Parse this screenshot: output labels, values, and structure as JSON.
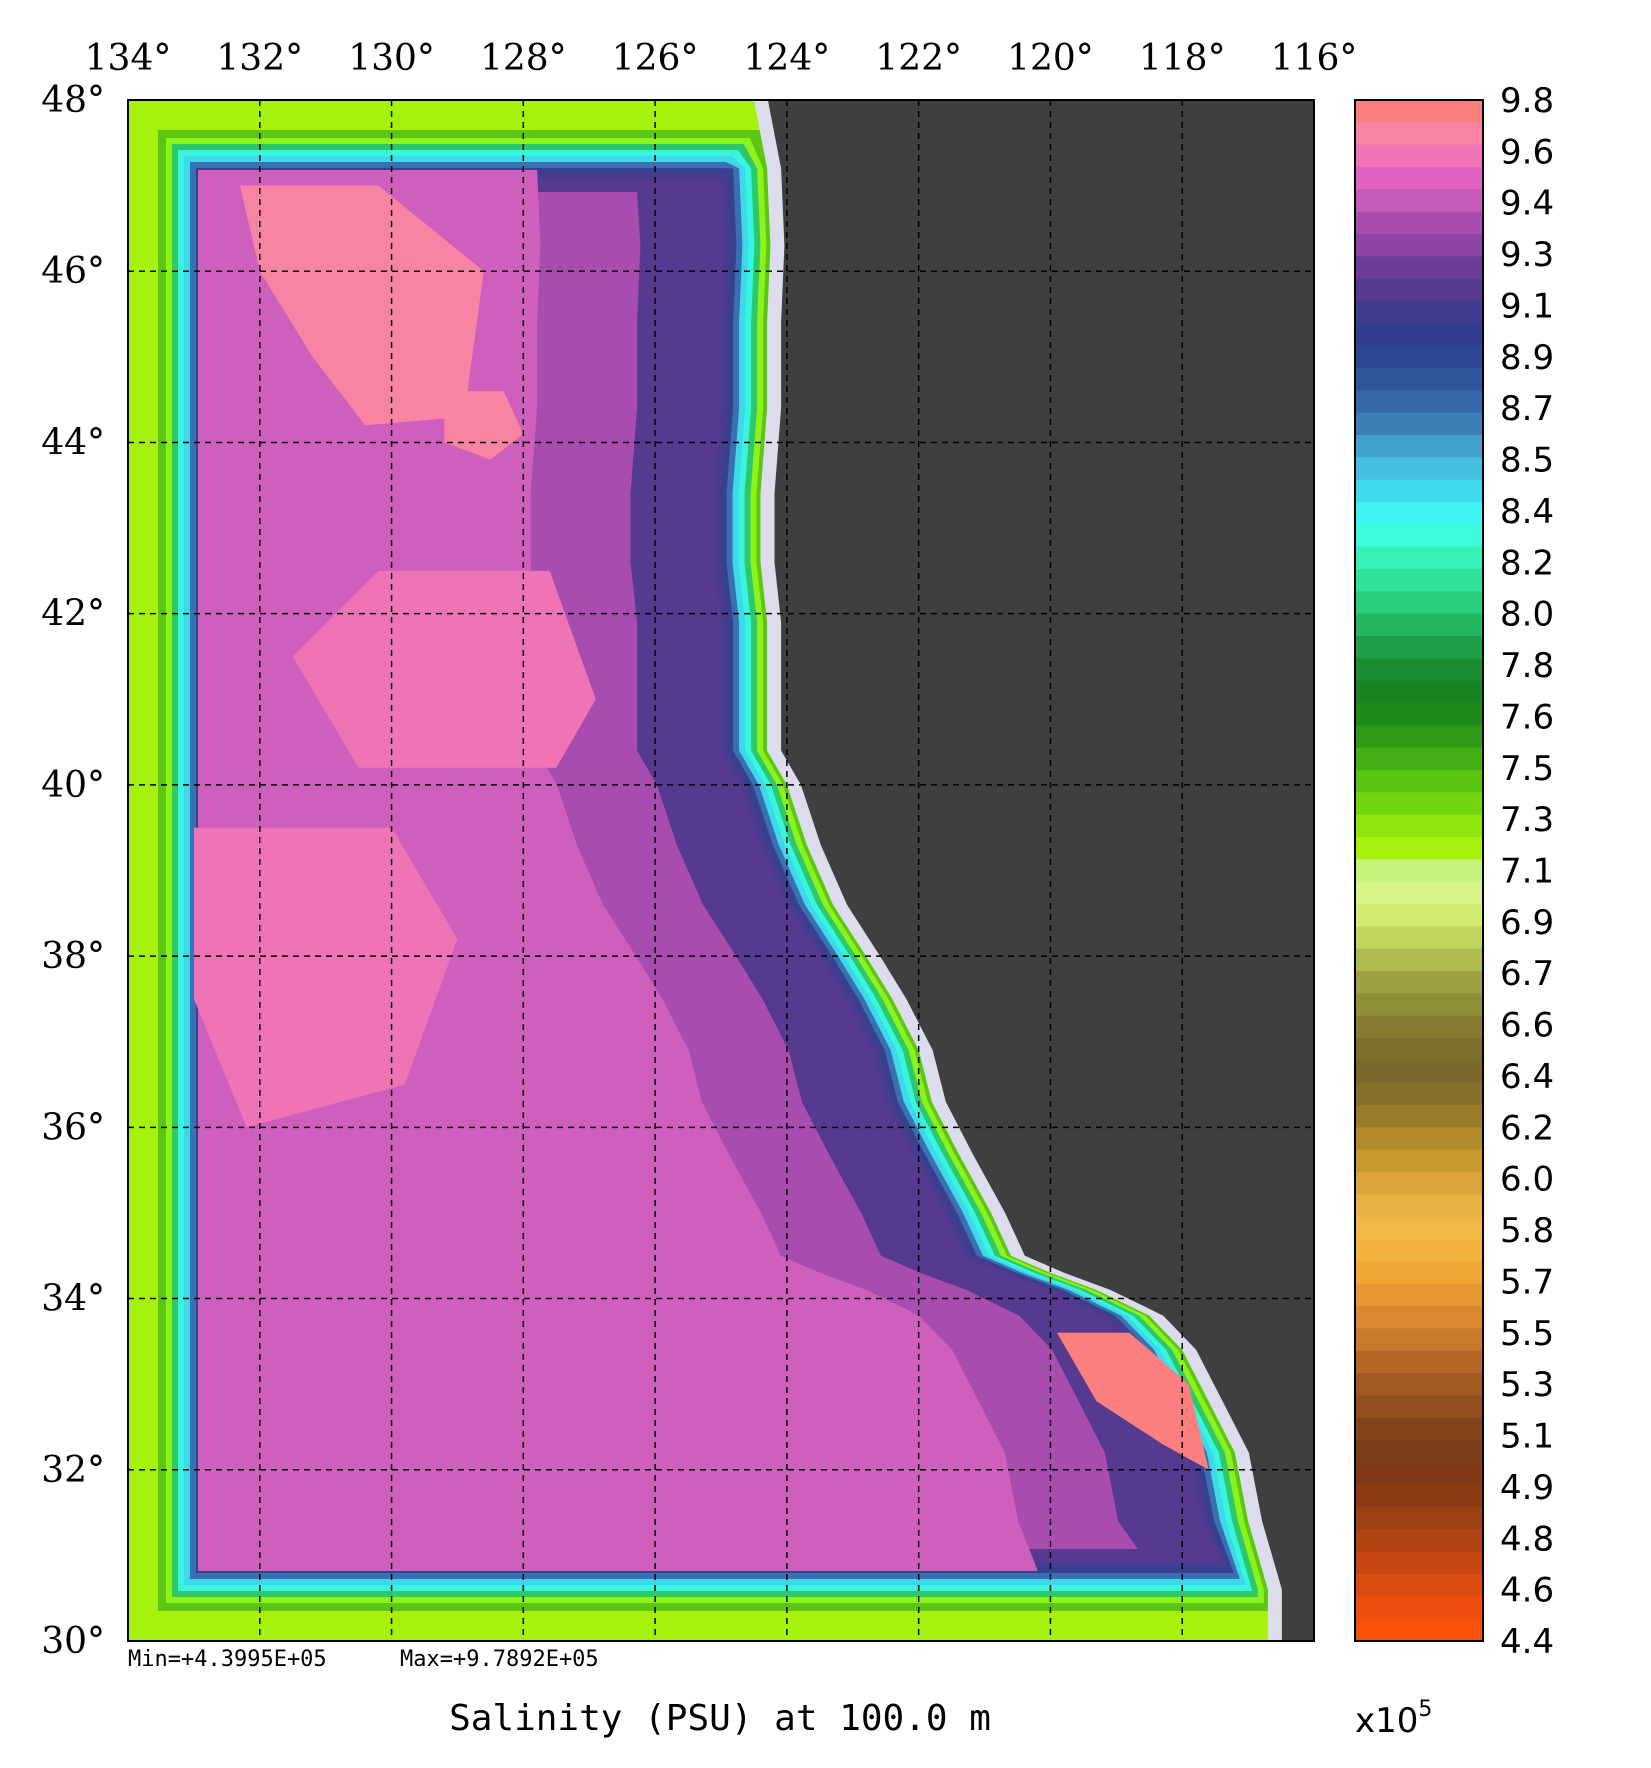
{
  "title": "Salinity (PSU) at 100.0 m",
  "stats": {
    "min_label": "Min=+4.3995E+05",
    "max_label": "Max=+9.7892E+05"
  },
  "map": {
    "lon_range": [
      134,
      116
    ],
    "lat_range": [
      30,
      48
    ],
    "lon_ticks": [
      134,
      132,
      130,
      128,
      126,
      124,
      122,
      120,
      118,
      116
    ],
    "lat_ticks": [
      48,
      46,
      44,
      42,
      40,
      38,
      36,
      34,
      32,
      30
    ],
    "lon_tick_labels": [
      "134°",
      "132°",
      "130°",
      "128°",
      "126°",
      "124°",
      "122°",
      "120°",
      "118°",
      "116°"
    ],
    "lat_tick_labels": [
      "48°",
      "46°",
      "44°",
      "42°",
      "40°",
      "38°",
      "36°",
      "34°",
      "32°",
      "30°"
    ],
    "grid": true,
    "land_color": "#3f3f3f",
    "coast_color": "#dcdcec",
    "coastline": [
      [
        124.5,
        48.0
      ],
      [
        124.3,
        47.2
      ],
      [
        124.25,
        46.3
      ],
      [
        124.3,
        45.4
      ],
      [
        124.3,
        44.4
      ],
      [
        124.4,
        43.4
      ],
      [
        124.4,
        42.6
      ],
      [
        124.3,
        41.9
      ],
      [
        124.3,
        41.0
      ],
      [
        124.3,
        40.4
      ],
      [
        124.0,
        40.0
      ],
      [
        123.7,
        39.3
      ],
      [
        123.3,
        38.6
      ],
      [
        122.8,
        38.0
      ],
      [
        122.4,
        37.5
      ],
      [
        122.0,
        36.9
      ],
      [
        121.8,
        36.3
      ],
      [
        121.4,
        35.7
      ],
      [
        120.9,
        35.0
      ],
      [
        120.6,
        34.5
      ],
      [
        120.0,
        34.3
      ],
      [
        119.3,
        34.1
      ],
      [
        118.5,
        33.8
      ],
      [
        118.0,
        33.4
      ],
      [
        117.6,
        32.8
      ],
      [
        117.2,
        32.2
      ],
      [
        117.0,
        31.4
      ],
      [
        116.7,
        30.6
      ],
      [
        116.7,
        30.0
      ]
    ],
    "ocean_fill": "#cf5fbd",
    "inner_high_patches": [
      {
        "name": "north-high",
        "values_ref": "9.7",
        "points": [
          [
            132.3,
            47.0
          ],
          [
            130.2,
            47.0
          ],
          [
            128.6,
            46.0
          ],
          [
            128.9,
            44.3
          ],
          [
            130.4,
            44.2
          ],
          [
            131.2,
            45.0
          ],
          [
            132.0,
            46.0
          ]
        ]
      },
      {
        "name": "north-east-high",
        "values_ref": "9.7",
        "points": [
          [
            129.2,
            44.6
          ],
          [
            128.3,
            44.6
          ],
          [
            128.0,
            44.1
          ],
          [
            128.5,
            43.8
          ],
          [
            129.2,
            44.0
          ]
        ]
      },
      {
        "name": "middle-high",
        "values_ref": "9.6",
        "points": [
          [
            130.2,
            42.5
          ],
          [
            127.6,
            42.5
          ],
          [
            126.9,
            41.0
          ],
          [
            127.5,
            40.2
          ],
          [
            130.5,
            40.2
          ],
          [
            131.5,
            41.5
          ]
        ]
      },
      {
        "name": "south-high",
        "values_ref": "9.6",
        "points": [
          [
            133.0,
            39.5
          ],
          [
            130.0,
            39.5
          ],
          [
            129.0,
            38.2
          ],
          [
            129.8,
            36.5
          ],
          [
            132.2,
            36.0
          ],
          [
            133.0,
            37.5
          ]
        ]
      },
      {
        "name": "sd-bight-high",
        "values_ref": "9.75",
        "points": [
          [
            119.9,
            33.6
          ],
          [
            118.8,
            33.6
          ],
          [
            117.9,
            33.0
          ],
          [
            117.6,
            32.0
          ],
          [
            118.3,
            32.3
          ],
          [
            119.3,
            32.8
          ]
        ]
      }
    ],
    "low_band_color": "#553a90",
    "coastal_band_colors": [
      "#4a3b8f",
      "#37418f",
      "#3a6fb2",
      "#3fd8e8",
      "#37f5e0",
      "#2ec86a",
      "#8cf21a"
    ],
    "frame_band_colors": [
      "#a6f20e",
      "#5cc614",
      "#1f7d14"
    ]
  },
  "colorbar": {
    "labels": [
      "9.8",
      "9.6",
      "9.4",
      "9.3",
      "9.1",
      "8.9",
      "8.7",
      "8.5",
      "8.4",
      "8.2",
      "8.0",
      "7.8",
      "7.6",
      "7.5",
      "7.3",
      "7.1",
      "6.9",
      "6.7",
      "6.6",
      "6.4",
      "6.2",
      "6.0",
      "5.8",
      "5.7",
      "5.5",
      "5.3",
      "5.1",
      "4.9",
      "4.8",
      "4.6",
      "4.4"
    ],
    "multiplier_base": "x10",
    "multiplier_exp": "5",
    "colors": [
      "#fb7f7f",
      "#f884a3",
      "#ee74b6",
      "#de64c0",
      "#c65ab8",
      "#a84cb0",
      "#8c45a5",
      "#6c3d97",
      "#553a90",
      "#3f3b8d",
      "#323d8d",
      "#2c4791",
      "#2f569b",
      "#3468a9",
      "#3c7fb7",
      "#43a1cd",
      "#45bfe0",
      "#41d9ec",
      "#3ef3f4",
      "#3dfadc",
      "#36f2b8",
      "#2fe39a",
      "#28cf7c",
      "#23b762",
      "#1f9e48",
      "#1b8d33",
      "#178421",
      "#1d8a19",
      "#2e9a17",
      "#45b016",
      "#5ac413",
      "#71d410",
      "#8ee80e",
      "#a6f20e",
      "#c8f37a",
      "#d9f486",
      "#d2ea70",
      "#c0d65e",
      "#aebb4e",
      "#9fa041",
      "#908f38",
      "#857c31",
      "#7c6e2c",
      "#7b682b",
      "#857029",
      "#9a7b2a",
      "#b28a2c",
      "#c7992f",
      "#d9a53a",
      "#e8b144",
      "#f0b847",
      "#f4b33e",
      "#f1a737",
      "#e69833",
      "#d9882f",
      "#c8792b",
      "#b56727",
      "#a35a22",
      "#93501f",
      "#83441b",
      "#7a3e1b",
      "#7f3a17",
      "#8b3c15",
      "#9d4013",
      "#b04412",
      "#c64711",
      "#dc4b10",
      "#ef4e0e",
      "#f8510c"
    ]
  }
}
